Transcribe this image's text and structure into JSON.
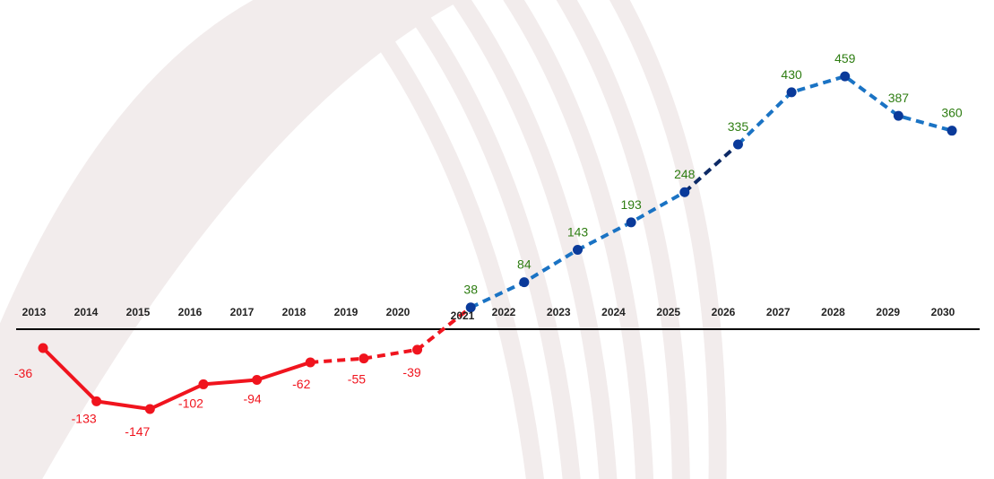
{
  "chart_data": {
    "type": "line",
    "title": "",
    "xlabel": "",
    "ylabel": "",
    "categories": [
      "2013",
      "2014",
      "2015",
      "2016",
      "2017",
      "2018",
      "2019",
      "2020",
      "2021",
      "2022",
      "2023",
      "2024",
      "2025",
      "2026",
      "2027",
      "2028",
      "2029",
      "2030"
    ],
    "values": [
      -36,
      -133,
      -147,
      -102,
      -94,
      -62,
      -55,
      -39,
      38,
      84,
      143,
      193,
      248,
      335,
      430,
      459,
      387,
      360
    ],
    "ylim": [
      -160,
      470
    ],
    "grid": false,
    "segments": [
      {
        "from": "2013",
        "to": "2018",
        "style": "solid",
        "color": "#f0141e"
      },
      {
        "from": "2018",
        "to": "2021",
        "style": "dashed",
        "color": "#f0141e"
      },
      {
        "from": "2021",
        "to": "2025",
        "style": "dashed",
        "color": "#1a73c4"
      },
      {
        "from": "2025",
        "to": "2026",
        "style": "dashed",
        "color": "#0d2a66"
      },
      {
        "from": "2026",
        "to": "2030",
        "style": "dashed",
        "color": "#1a73c4"
      }
    ],
    "colors": {
      "negative": "#f0141e",
      "positive_marker": "#0a3a9a",
      "positive_label": "#2e7d12",
      "axis": "#000000",
      "watermark": "#f2ecec"
    }
  }
}
